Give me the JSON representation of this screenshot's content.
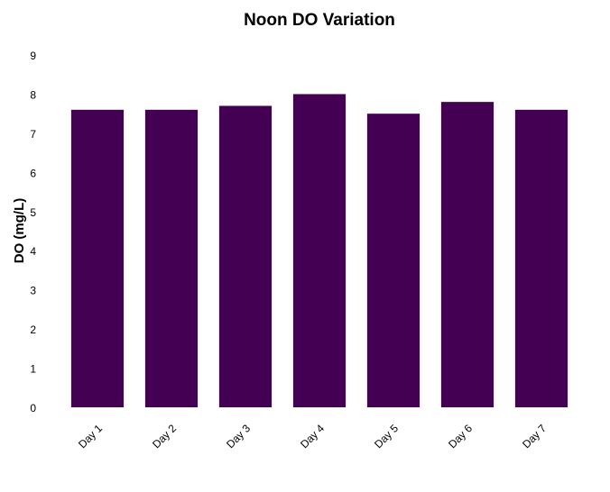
{
  "chart_data": {
    "type": "bar",
    "title": "Noon DO Variation",
    "xlabel": "",
    "ylabel": "DO (mg/L)",
    "categories": [
      "Day 1",
      "Day 2",
      "Day 3",
      "Day 4",
      "Day 5",
      "Day 6",
      "Day 7"
    ],
    "values": [
      7.6,
      7.6,
      7.7,
      8.0,
      7.5,
      7.8,
      7.6
    ],
    "ylim": [
      0,
      9
    ],
    "yticks": [
      "0",
      "1",
      "2",
      "3",
      "4",
      "5",
      "6",
      "7",
      "8",
      "9"
    ],
    "grid": false,
    "legend": "none",
    "bar_color": "#440154"
  }
}
